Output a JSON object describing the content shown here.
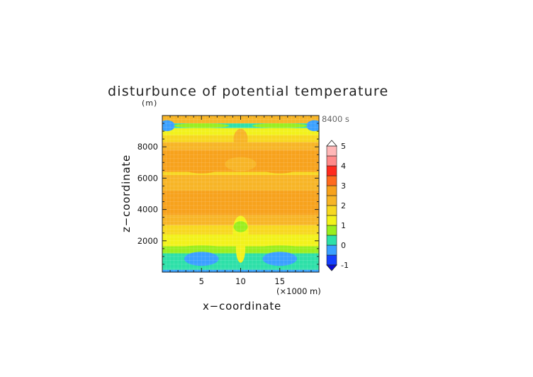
{
  "chart_data": {
    "type": "heatmap",
    "title": "disturbunce of potential temperature",
    "z_unit_label": "(m)",
    "time_label": "8400 s",
    "xlabel": "x−coordinate",
    "ylabel": "z−coordinate",
    "x_unit_label": "(×1000 m)",
    "xlim": [
      0,
      20
    ],
    "ylim": [
      0,
      10000
    ],
    "x_ticks": [
      5,
      10,
      15
    ],
    "y_ticks": [
      2000,
      4000,
      6000,
      8000
    ],
    "grid": false,
    "colorbar": {
      "levels": [
        -1,
        -0.5,
        0,
        0.5,
        1,
        1.5,
        2,
        2.5,
        3,
        3.5,
        4,
        4.5,
        5
      ],
      "labels": [
        "-1",
        "0",
        "1",
        "2",
        "3",
        "4",
        "5"
      ],
      "label_values": [
        -1,
        0,
        1,
        2,
        3,
        4,
        5
      ],
      "colors": [
        "#1440ff",
        "#3aa0ff",
        "#2de0a8",
        "#9aee1e",
        "#f2f21a",
        "#f7d820",
        "#f7b526",
        "#f7a21c",
        "#ff6a1e",
        "#ff2a1e",
        "#ff8a8a",
        "#ffb7b7"
      ]
    },
    "bands": [
      {
        "z0": 0,
        "z1": 150,
        "value": -0.2
      },
      {
        "z0": 150,
        "z1": 1200,
        "value": 0.3
      },
      {
        "z0": 1200,
        "z1": 1650,
        "value": 0.8
      },
      {
        "z0": 1650,
        "z1": 2400,
        "value": 1.3
      },
      {
        "z0": 2400,
        "z1": 3000,
        "value": 1.7
      },
      {
        "z0": 3000,
        "z1": 3650,
        "value": 2.2
      },
      {
        "z0": 3650,
        "z1": 5200,
        "value": 2.6
      },
      {
        "z0": 5200,
        "z1": 6200,
        "value": 2.2
      },
      {
        "z0": 6200,
        "z1": 6400,
        "value": 1.7
      },
      {
        "z0": 6400,
        "z1": 7800,
        "value": 2.6
      },
      {
        "z0": 7800,
        "z1": 8300,
        "value": 2.2
      },
      {
        "z0": 8300,
        "z1": 8750,
        "value": 1.7
      },
      {
        "z0": 8750,
        "z1": 9200,
        "value": 1.3
      },
      {
        "z0": 9200,
        "z1": 9500,
        "value": 0.3
      },
      {
        "z0": 9500,
        "z1": 10000,
        "value": 2.2
      }
    ]
  }
}
